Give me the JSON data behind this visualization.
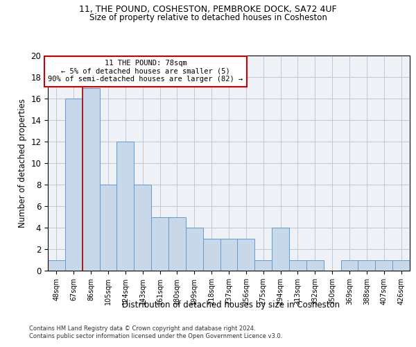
{
  "title1": "11, THE POUND, COSHESTON, PEMBROKE DOCK, SA72 4UF",
  "title2": "Size of property relative to detached houses in Cosheston",
  "xlabel": "Distribution of detached houses by size in Cosheston",
  "ylabel": "Number of detached properties",
  "bar_color": "#c8d8e8",
  "bar_edge_color": "#5b9bd5",
  "categories": [
    "48sqm",
    "67sqm",
    "86sqm",
    "105sqm",
    "124sqm",
    "143sqm",
    "161sqm",
    "180sqm",
    "199sqm",
    "218sqm",
    "237sqm",
    "256sqm",
    "275sqm",
    "294sqm",
    "313sqm",
    "332sqm",
    "350sqm",
    "369sqm",
    "388sqm",
    "407sqm",
    "426sqm"
  ],
  "values": [
    1,
    16,
    17,
    8,
    12,
    8,
    5,
    5,
    4,
    3,
    3,
    3,
    1,
    4,
    1,
    1,
    0,
    1,
    1,
    1,
    1
  ],
  "ylim": [
    0,
    20
  ],
  "yticks": [
    0,
    2,
    4,
    6,
    8,
    10,
    12,
    14,
    16,
    18,
    20
  ],
  "vline_x": 1.5,
  "vline_color": "#aa0000",
  "annotation_text": "11 THE POUND: 78sqm\n← 5% of detached houses are smaller (5)\n90% of semi-detached houses are larger (82) →",
  "annotation_box_color": "#ffffff",
  "annotation_box_edgecolor": "#cc0000",
  "footer1": "Contains HM Land Registry data © Crown copyright and database right 2024.",
  "footer2": "Contains public sector information licensed under the Open Government Licence v3.0.",
  "background_color": "#eef2f7",
  "grid_color": "#c0c8d8"
}
